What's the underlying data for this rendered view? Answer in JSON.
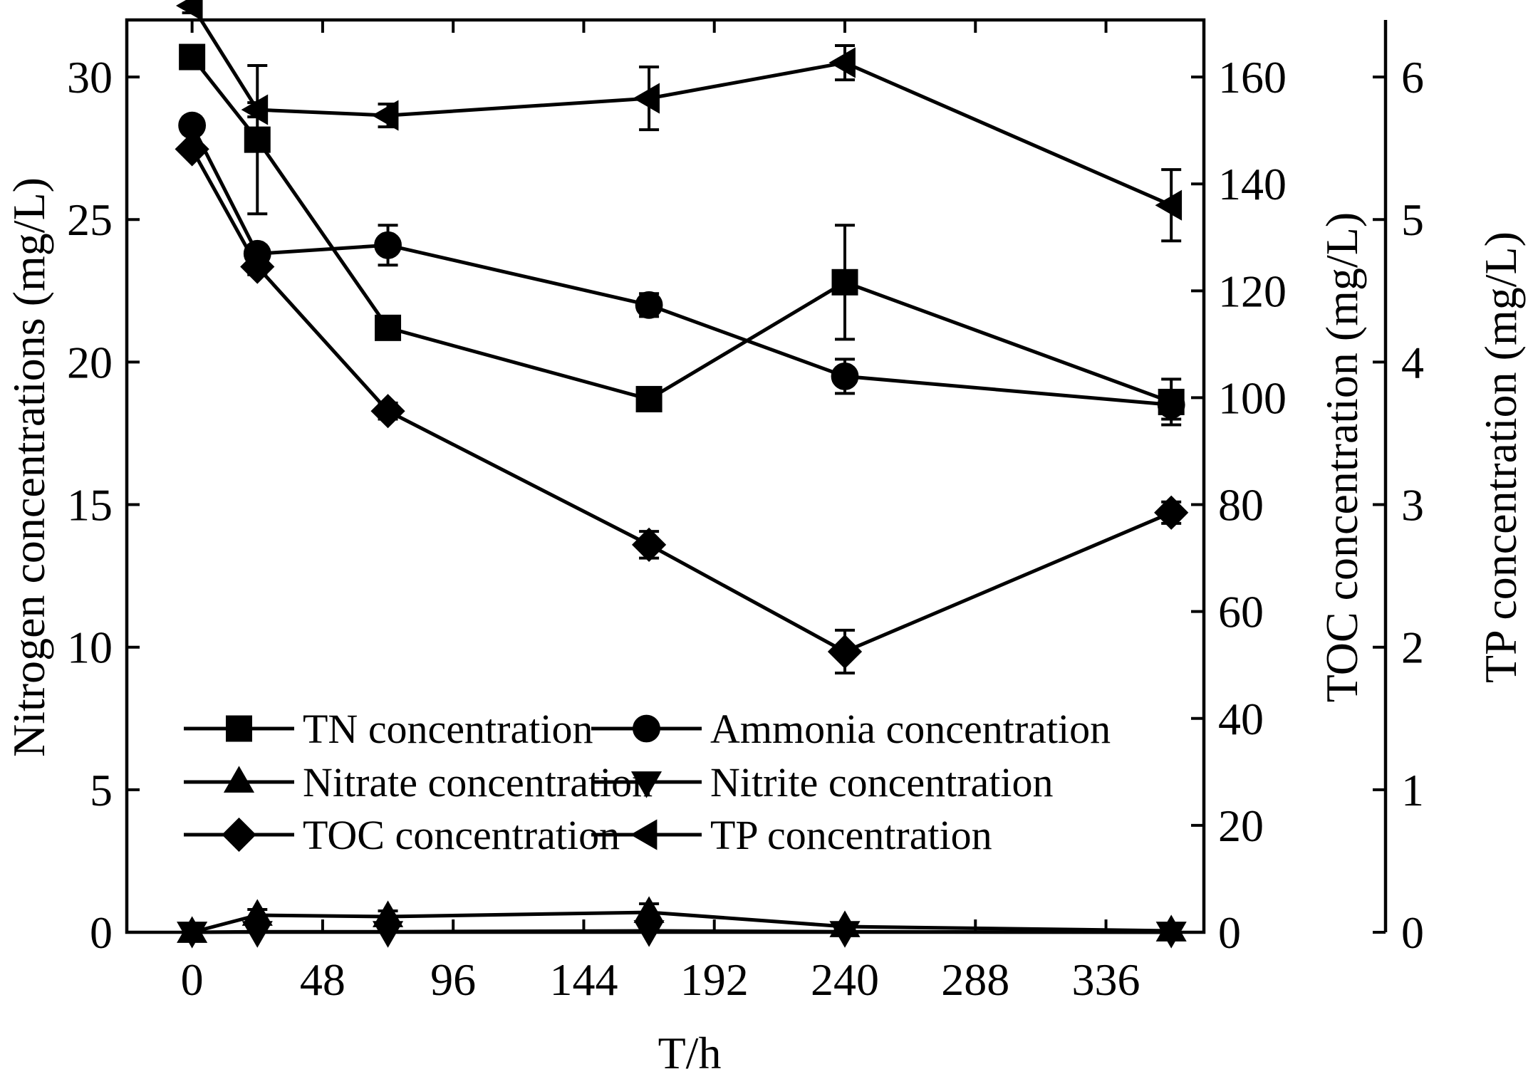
{
  "chart_data": {
    "type": "line",
    "x": [
      0,
      24,
      72,
      168,
      240,
      360
    ],
    "xticks": [
      0,
      48,
      96,
      144,
      192,
      240,
      288,
      336
    ],
    "xlim": [
      -24,
      372
    ],
    "xlabel": "T/h",
    "ylabel_left": "Nitrogen concentrations (mg/L)",
    "ylabel_right1": "TOC concentration (mg/L)",
    "ylabel_right2": "TP concentration (mg/L)",
    "ylim_left": [
      0,
      32
    ],
    "yticks_left": [
      0,
      5,
      10,
      15,
      20,
      25,
      30
    ],
    "ylim_right1": [
      0,
      170.67
    ],
    "yticks_right1": [
      0,
      20,
      40,
      60,
      80,
      100,
      120,
      140,
      160
    ],
    "ylim_right2": [
      0,
      6.4
    ],
    "yticks_right2": [
      0,
      1,
      2,
      3,
      4,
      5,
      6
    ],
    "grid": false,
    "legend_position": "lower-left inside",
    "series": [
      {
        "name": "TN concentration",
        "marker": "square",
        "axis": "left",
        "values": [
          30.7,
          27.8,
          21.2,
          18.7,
          22.8,
          18.6
        ],
        "errors": [
          0.2,
          2.6,
          0.3,
          0.2,
          2.0,
          0.8
        ]
      },
      {
        "name": "Ammonia concentration",
        "marker": "circle",
        "axis": "left",
        "values": [
          28.3,
          23.8,
          24.1,
          22.0,
          19.5,
          18.5
        ],
        "errors": [
          0.3,
          0.3,
          0.7,
          0.4,
          0.6,
          0.5
        ]
      },
      {
        "name": "Nitrate concentration",
        "marker": "triangle-up",
        "axis": "left",
        "values": [
          0.0,
          0.6,
          0.55,
          0.7,
          0.2,
          0.05
        ],
        "errors": [
          0.1,
          0.2,
          0.2,
          0.3,
          0.1,
          0.05
        ]
      },
      {
        "name": "Nitrite concentration",
        "marker": "triangle-down",
        "axis": "left",
        "values": [
          0.0,
          0.02,
          0.02,
          0.05,
          0.02,
          0.0
        ],
        "errors": [
          0.0,
          0.0,
          0.0,
          0.0,
          0.0,
          0.0
        ]
      },
      {
        "name": "TOC concentration",
        "marker": "diamond",
        "axis": "right1",
        "values": [
          146.5,
          124.5,
          97.5,
          72.5,
          52.5,
          78.5
        ],
        "errors": [
          1.0,
          1.5,
          1.5,
          2.5,
          4.0,
          2.0
        ]
      },
      {
        "name": "TP concentration",
        "marker": "triangle-left",
        "axis": "right2",
        "values": [
          6.5,
          5.77,
          5.73,
          5.85,
          6.1,
          5.1
        ],
        "errors": [
          0.05,
          0.05,
          0.08,
          0.22,
          0.12,
          0.25
        ]
      }
    ]
  }
}
